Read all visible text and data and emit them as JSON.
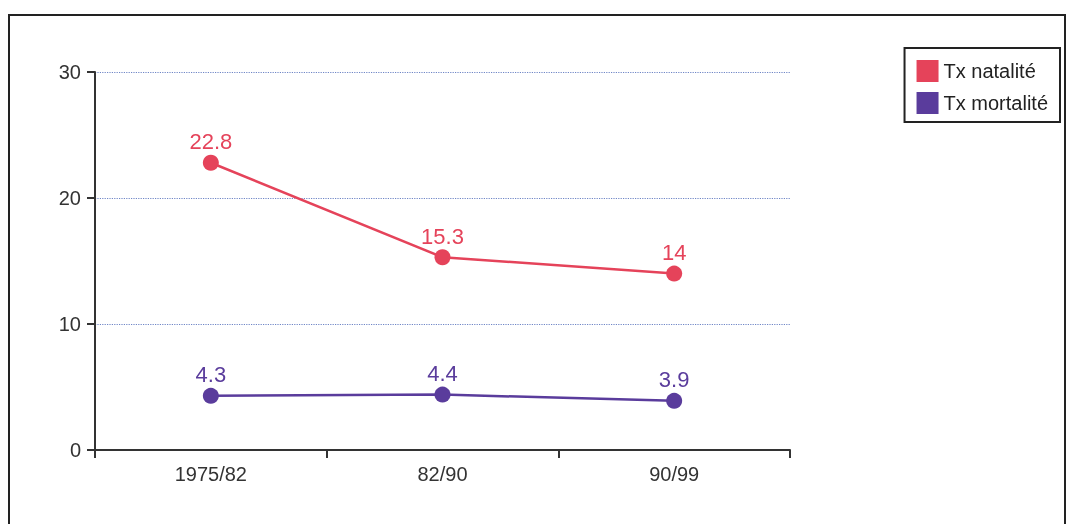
{
  "chart_data": {
    "type": "line",
    "categories": [
      "1975/82",
      "82/90",
      "90/99"
    ],
    "series": [
      {
        "name": "Tx natalité",
        "color": "#e5435a",
        "values": [
          22.8,
          15.3,
          14
        ]
      },
      {
        "name": "Tx mortalité",
        "color": "#5a3c9c",
        "values": [
          4.3,
          4.4,
          3.9
        ]
      }
    ],
    "ylim": [
      0,
      30
    ],
    "yticks": [
      0,
      10,
      20,
      30
    ],
    "grid": "y",
    "legend": "top right",
    "marker": "circle",
    "line_style": "solid",
    "data_labels": true
  }
}
